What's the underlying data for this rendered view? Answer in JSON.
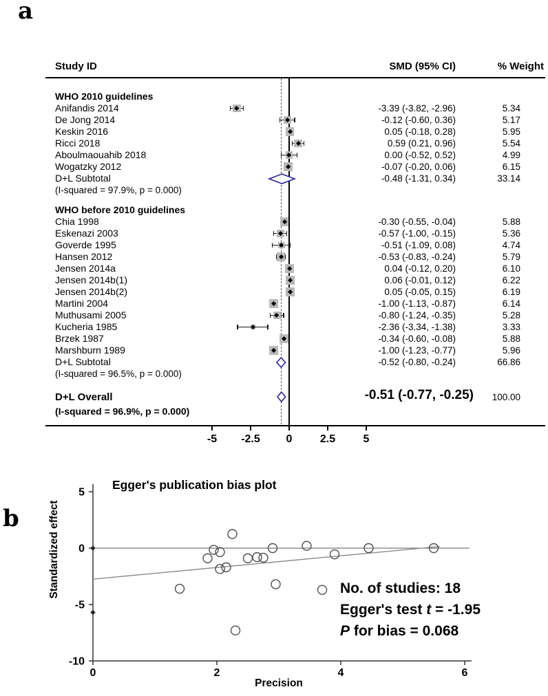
{
  "panels": {
    "a": "a",
    "b": "b"
  },
  "chart_data": [
    {
      "type": "table",
      "subtype": "forest_plot",
      "columns": {
        "study": "Study ID",
        "smd": "SMD (95% CI)",
        "weight": "% Weight"
      },
      "axis_tick_values": [
        -5,
        -2.5,
        0,
        2.5,
        5
      ],
      "axis_tick_labels": [
        "-5",
        "-2.5",
        "0",
        "2.5",
        "5"
      ],
      "null_line": 0,
      "overall_effect_line": -0.51,
      "colors": {
        "diamond": "#26269b",
        "square": "#b9b9b9",
        "ref_line": "#a93a2c"
      },
      "rows": [
        {
          "type": "group",
          "label": "WHO 2010 guidelines"
        },
        {
          "type": "study",
          "label": "Anifandis 2014",
          "est": -3.39,
          "lo": -3.82,
          "hi": -2.96,
          "smd": "-3.39 (-3.82, -2.96)",
          "weight": "5.34"
        },
        {
          "type": "study",
          "label": "De Jong 2014",
          "est": -0.12,
          "lo": -0.6,
          "hi": 0.36,
          "smd": "-0.12 (-0.60, 0.36)",
          "weight": "5.17"
        },
        {
          "type": "study",
          "label": "Keskin 2016",
          "est": 0.05,
          "lo": -0.18,
          "hi": 0.28,
          "smd": "0.05 (-0.18, 0.28)",
          "weight": "5.95"
        },
        {
          "type": "study",
          "label": "Ricci 2018",
          "est": 0.59,
          "lo": 0.21,
          "hi": 0.96,
          "smd": "0.59 (0.21, 0.96)",
          "weight": "5.54"
        },
        {
          "type": "study",
          "label": "Aboulmaouahib 2018",
          "est": 0.0,
          "lo": -0.52,
          "hi": 0.52,
          "smd": "0.00 (-0.52, 0.52)",
          "weight": "4.99"
        },
        {
          "type": "study",
          "label": "Wogatzky 2012",
          "est": -0.07,
          "lo": -0.2,
          "hi": 0.06,
          "smd": "-0.07 (-0.20, 0.06)",
          "weight": "6.15"
        },
        {
          "type": "subtotal",
          "label": "D+L Subtotal",
          "est": -0.48,
          "lo": -1.31,
          "hi": 0.34,
          "smd": "-0.48 (-1.31, 0.34)",
          "weight": "33.14"
        },
        {
          "type": "hetero",
          "label": "(I-squared = 97.9%, p = 0.000)"
        },
        {
          "type": "group",
          "label": "WHO before 2010 guidelines"
        },
        {
          "type": "study",
          "label": "Chia 1998",
          "est": -0.3,
          "lo": -0.55,
          "hi": -0.04,
          "smd": "-0.30 (-0.55, -0.04)",
          "weight": "5.88"
        },
        {
          "type": "study",
          "label": "Eskenazi 2003",
          "est": -0.57,
          "lo": -1.0,
          "hi": -0.15,
          "smd": "-0.57 (-1.00, -0.15)",
          "weight": "5.36"
        },
        {
          "type": "study",
          "label": "Goverde 1995",
          "est": -0.51,
          "lo": -1.09,
          "hi": 0.08,
          "smd": "-0.51 (-1.09, 0.08)",
          "weight": "4.74"
        },
        {
          "type": "study",
          "label": "Hansen 2012",
          "est": -0.53,
          "lo": -0.83,
          "hi": -0.24,
          "smd": "-0.53 (-0.83, -0.24)",
          "weight": "5.79"
        },
        {
          "type": "study",
          "label": "Jensen 2014a",
          "est": 0.04,
          "lo": -0.12,
          "hi": 0.2,
          "smd": "0.04 (-0.12, 0.20)",
          "weight": "6.10"
        },
        {
          "type": "study",
          "label": "Jensen 2014b(1)",
          "est": 0.06,
          "lo": -0.01,
          "hi": 0.12,
          "smd": "0.06 (-0.01, 0.12)",
          "weight": "6.22"
        },
        {
          "type": "study",
          "label": "Jensen 2014b(2)",
          "est": 0.05,
          "lo": -0.05,
          "hi": 0.15,
          "smd": "0.05 (-0.05, 0.15)",
          "weight": "6.19"
        },
        {
          "type": "study",
          "label": "Martini 2004",
          "est": -1.0,
          "lo": -1.13,
          "hi": -0.87,
          "smd": "-1.00 (-1.13, -0.87)",
          "weight": "6.14"
        },
        {
          "type": "study",
          "label": "Muthusami 2005",
          "est": -0.8,
          "lo": -1.24,
          "hi": -0.35,
          "smd": "-0.80 (-1.24, -0.35)",
          "weight": "5.28"
        },
        {
          "type": "study",
          "label": "Kucheria 1985",
          "est": -2.36,
          "lo": -3.34,
          "hi": -1.38,
          "smd": "-2.36 (-3.34, -1.38)",
          "weight": "3.33"
        },
        {
          "type": "study",
          "label": "Brzek 1987",
          "est": -0.34,
          "lo": -0.6,
          "hi": -0.08,
          "smd": "-0.34 (-0.60, -0.08)",
          "weight": "5.88"
        },
        {
          "type": "study",
          "label": "Marshburn 1989",
          "est": -1.0,
          "lo": -1.23,
          "hi": -0.77,
          "smd": "-1.00 (-1.23, -0.77)",
          "weight": "5.96"
        },
        {
          "type": "subtotal",
          "label": "D+L Subtotal",
          "est": -0.52,
          "lo": -0.8,
          "hi": -0.24,
          "smd": "-0.52 (-0.80, -0.24)",
          "weight": "66.86"
        },
        {
          "type": "hetero",
          "label": "(I-squared = 96.5%, p = 0.000)"
        },
        {
          "type": "overall",
          "label": "D+L Overall",
          "est": -0.51,
          "lo": -0.77,
          "hi": -0.25,
          "smd": "-0.51 (-0.77, -0.25)",
          "weight": "100.00"
        },
        {
          "type": "overall_hetero",
          "label": "(I-squared = 96.9%, p = 0.000)"
        }
      ]
    },
    {
      "type": "scatter",
      "title": "Egger's publication bias plot",
      "xlabel": "Precision",
      "ylabel": "Standardized effect",
      "xlim": [
        0,
        6.1
      ],
      "ylim": [
        -10,
        5.5
      ],
      "x_tick_values": [
        0,
        2,
        4,
        6
      ],
      "x_tick_labels": [
        "0",
        "2",
        "4",
        "6"
      ],
      "y_tick_values": [
        5,
        0,
        -5,
        -10
      ],
      "y_tick_labels": [
        "5",
        "0",
        "-5",
        "-10"
      ],
      "zero_line_y": 0,
      "regression_line": {
        "x1": 0,
        "y1": -2.75,
        "x2": 5.6,
        "y2": 0.15
      },
      "points": [
        [
          1.4,
          -3.6
        ],
        [
          1.85,
          -0.9
        ],
        [
          1.95,
          -0.15
        ],
        [
          2.05,
          -0.35
        ],
        [
          2.05,
          -1.85
        ],
        [
          2.15,
          -1.7
        ],
        [
          2.25,
          1.25
        ],
        [
          2.3,
          -7.3
        ],
        [
          2.5,
          -0.9
        ],
        [
          2.65,
          -0.8
        ],
        [
          2.75,
          -0.85
        ],
        [
          2.9,
          0.0
        ],
        [
          2.95,
          -3.2
        ],
        [
          3.45,
          0.2
        ],
        [
          3.7,
          -3.7
        ],
        [
          3.9,
          -0.55
        ],
        [
          4.45,
          0.0
        ],
        [
          5.5,
          0.0
        ]
      ],
      "axis_diamond_points": [
        [
          0,
          0
        ],
        [
          0,
          -5.7
        ]
      ],
      "colors": {
        "circle": "#4d4d4d",
        "line": "#8a8a8a"
      },
      "annotation": {
        "line1": "No. of studies: 18",
        "line2_pre": "Egger's test ",
        "line2_italic": "t",
        "line2_post": " = -1.95",
        "line3_italic": "P",
        "line3_post": " for bias = 0.068"
      }
    }
  ]
}
